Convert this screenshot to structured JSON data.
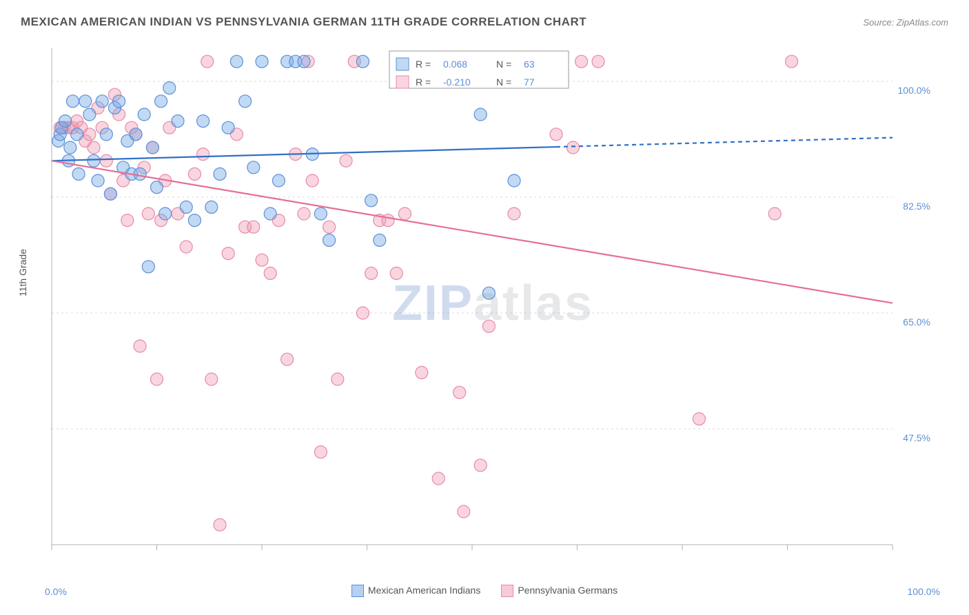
{
  "title": "MEXICAN AMERICAN INDIAN VS PENNSYLVANIA GERMAN 11TH GRADE CORRELATION CHART",
  "source": "Source: ZipAtlas.com",
  "ylabel": "11th Grade",
  "watermark_prefix": "ZIP",
  "watermark_suffix": "atlas",
  "chart": {
    "type": "scatter",
    "xlim": [
      0,
      100
    ],
    "ylim": [
      30,
      105
    ],
    "x_axis_label_min": "0.0%",
    "x_axis_label_max": "100.0%",
    "y_ticks": [
      47.5,
      65.0,
      82.5,
      100.0
    ],
    "y_tick_labels": [
      "47.5%",
      "65.0%",
      "82.5%",
      "100.0%"
    ],
    "x_ticks": [
      0,
      12.5,
      25,
      37.5,
      50,
      62.5,
      75,
      87.5,
      100
    ],
    "gridline_color": "#d9d9d9",
    "axis_color": "#b0b0b0",
    "tick_label_color": "#5b8fd6",
    "tick_fontsize": 14,
    "marker_radius": 9,
    "marker_stroke_width": 1.2,
    "line_width": 2.2
  },
  "series": [
    {
      "name": "Mexican American Indians",
      "fill_color": "rgba(120,170,230,0.45)",
      "stroke_color": "#5b8fd6",
      "line_color": "#2f6fc8",
      "R": "0.068",
      "N": "63",
      "trend": {
        "x1": 0,
        "y1": 88.0,
        "x2": 100,
        "y2": 91.5
      },
      "solid_until_x": 60,
      "points": [
        [
          0.8,
          91
        ],
        [
          1.0,
          92
        ],
        [
          1.2,
          93
        ],
        [
          1.6,
          94
        ],
        [
          2.0,
          88
        ],
        [
          2.2,
          90
        ],
        [
          2.5,
          97
        ],
        [
          3.0,
          92
        ],
        [
          3.2,
          86
        ],
        [
          4.0,
          97
        ],
        [
          4.5,
          95
        ],
        [
          5.0,
          88
        ],
        [
          5.5,
          85
        ],
        [
          6.0,
          97
        ],
        [
          6.5,
          92
        ],
        [
          7.0,
          83
        ],
        [
          7.5,
          96
        ],
        [
          8.0,
          97
        ],
        [
          8.5,
          87
        ],
        [
          9.0,
          91
        ],
        [
          9.5,
          86
        ],
        [
          10.0,
          92
        ],
        [
          10.5,
          86
        ],
        [
          11.0,
          95
        ],
        [
          11.5,
          72
        ],
        [
          12.0,
          90
        ],
        [
          12.5,
          84
        ],
        [
          13.0,
          97
        ],
        [
          13.5,
          80
        ],
        [
          14.0,
          99
        ],
        [
          15.0,
          94
        ],
        [
          16.0,
          81
        ],
        [
          17.0,
          79
        ],
        [
          18.0,
          94
        ],
        [
          19.0,
          81
        ],
        [
          20.0,
          86
        ],
        [
          21.0,
          93
        ],
        [
          22.0,
          103
        ],
        [
          23.0,
          97
        ],
        [
          24.0,
          87
        ],
        [
          25.0,
          103
        ],
        [
          26.0,
          80
        ],
        [
          27.0,
          85
        ],
        [
          28.0,
          103
        ],
        [
          29.0,
          103
        ],
        [
          30.0,
          103
        ],
        [
          31.0,
          89
        ],
        [
          32.0,
          80
        ],
        [
          33.0,
          76
        ],
        [
          37.0,
          103
        ],
        [
          38.0,
          82
        ],
        [
          39.0,
          76
        ],
        [
          51.0,
          95
        ],
        [
          52.0,
          68
        ],
        [
          55.0,
          85
        ],
        [
          60.0,
          103
        ]
      ]
    },
    {
      "name": "Pennsylvania Germans",
      "fill_color": "rgba(240,150,175,0.40)",
      "stroke_color": "#e68aa7",
      "line_color": "#e56f94",
      "R": "-0.210",
      "N": "77",
      "trend": {
        "x1": 0,
        "y1": 88.0,
        "x2": 100,
        "y2": 66.5
      },
      "solid_until_x": 100,
      "points": [
        [
          1.0,
          93
        ],
        [
          1.5,
          93
        ],
        [
          2.0,
          93
        ],
        [
          2.5,
          93
        ],
        [
          3.0,
          94
        ],
        [
          3.5,
          93
        ],
        [
          4.0,
          91
        ],
        [
          4.5,
          92
        ],
        [
          5.0,
          90
        ],
        [
          5.5,
          96
        ],
        [
          6.0,
          93
        ],
        [
          6.5,
          88
        ],
        [
          7.0,
          83
        ],
        [
          7.5,
          98
        ],
        [
          8.0,
          95
        ],
        [
          8.5,
          85
        ],
        [
          9.0,
          79
        ],
        [
          9.5,
          93
        ],
        [
          10.0,
          92
        ],
        [
          10.5,
          60
        ],
        [
          11.0,
          87
        ],
        [
          11.5,
          80
        ],
        [
          12.0,
          90
        ],
        [
          12.5,
          55
        ],
        [
          13.0,
          79
        ],
        [
          13.5,
          85
        ],
        [
          14.0,
          93
        ],
        [
          15.0,
          80
        ],
        [
          16.0,
          75
        ],
        [
          17.0,
          86
        ],
        [
          18.0,
          89
        ],
        [
          18.5,
          103
        ],
        [
          19.0,
          55
        ],
        [
          20.0,
          33
        ],
        [
          21.0,
          74
        ],
        [
          22.0,
          92
        ],
        [
          23.0,
          78
        ],
        [
          24.0,
          78
        ],
        [
          25.0,
          73
        ],
        [
          26.0,
          71
        ],
        [
          27.0,
          79
        ],
        [
          28.0,
          58
        ],
        [
          29.0,
          89
        ],
        [
          30.0,
          80
        ],
        [
          30.5,
          103
        ],
        [
          31.0,
          85
        ],
        [
          32.0,
          44
        ],
        [
          33.0,
          78
        ],
        [
          34.0,
          55
        ],
        [
          35.0,
          88
        ],
        [
          36.0,
          103
        ],
        [
          37.0,
          65
        ],
        [
          38.0,
          71
        ],
        [
          39.0,
          79
        ],
        [
          40.0,
          79
        ],
        [
          41.0,
          71
        ],
        [
          42.0,
          80
        ],
        [
          43.0,
          103
        ],
        [
          44.0,
          56
        ],
        [
          46.0,
          40
        ],
        [
          48.0,
          103
        ],
        [
          48.5,
          53
        ],
        [
          49.0,
          35
        ],
        [
          51.0,
          42
        ],
        [
          52.0,
          63
        ],
        [
          55.0,
          80
        ],
        [
          60.0,
          92
        ],
        [
          62.0,
          90
        ],
        [
          63.0,
          103
        ],
        [
          65.0,
          103
        ],
        [
          77.0,
          49
        ],
        [
          86.0,
          80
        ],
        [
          88.0,
          103
        ]
      ]
    }
  ],
  "top_legend": {
    "label_R": "R =",
    "label_N": "N =",
    "box_stroke": "#999999",
    "text_color": "#555555",
    "value_color": "#5b8fd6"
  },
  "bottom_legend_items": [
    {
      "label": "Mexican American Indians",
      "fill": "rgba(120,170,230,0.55)",
      "stroke": "#5b8fd6"
    },
    {
      "label": "Pennsylvania Germans",
      "fill": "rgba(240,150,175,0.5)",
      "stroke": "#e68aa7"
    }
  ]
}
